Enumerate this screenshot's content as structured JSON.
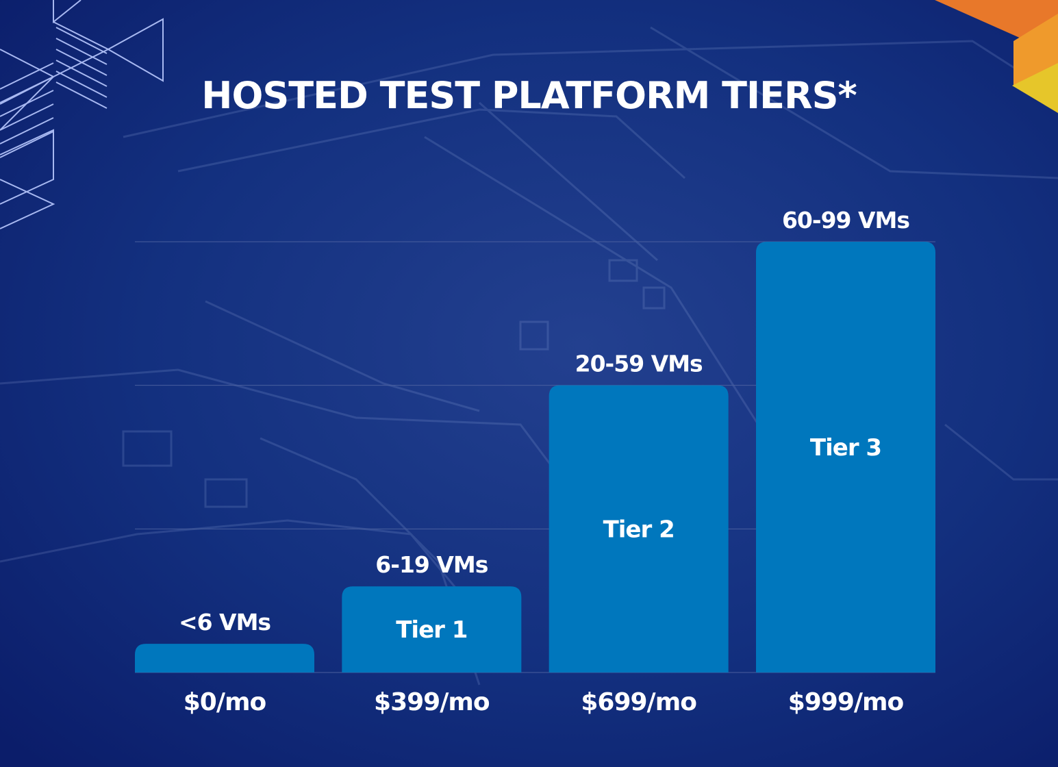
{
  "title": "HOSTED TEST PLATFORM TIERS*",
  "colors": {
    "background": "#0d2275",
    "bar": "#0077bd",
    "gridline": "#4a5f9e",
    "text": "#ffffff",
    "accent_orange": "#e8782a",
    "accent_yellow": "#e6c62a"
  },
  "chart_data": {
    "type": "bar",
    "categories": [
      "$0/mo",
      "$399/mo",
      "$699/mo",
      "$999/mo"
    ],
    "values": [
      0.2,
      0.6,
      2.0,
      3.0
    ],
    "bar_labels": [
      "<6 VMs",
      "6-19 VMs",
      "20-59 VMs",
      "60-99 VMs"
    ],
    "inner_labels": [
      "",
      "Tier 1",
      "Tier 2",
      "Tier 3"
    ],
    "ylim": [
      0,
      3
    ],
    "grid": true,
    "axis_labels_shown": false
  }
}
